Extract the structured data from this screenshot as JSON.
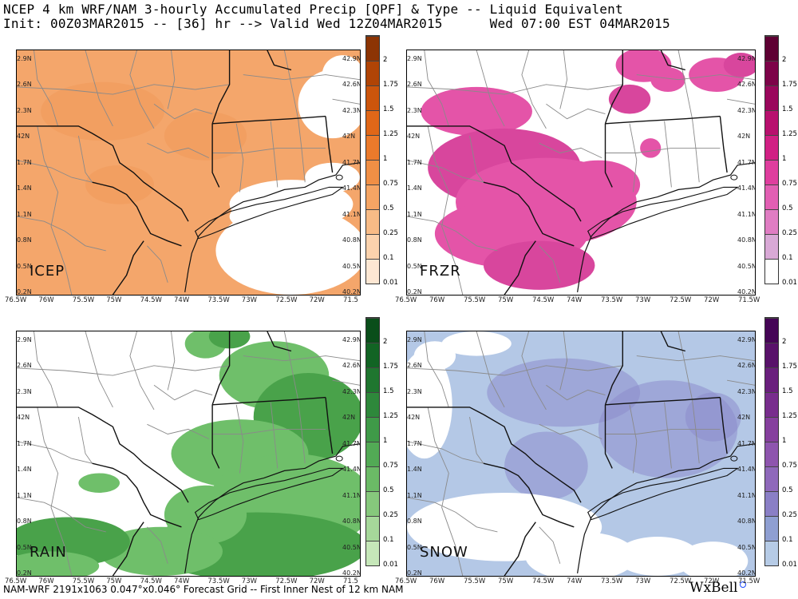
{
  "header": {
    "line1": "NCEP 4 km WRF/NAM 3-hourly Accumulated Precip [QPF] & Type -- Liquid Equivalent",
    "line2": "Init: 00Z03MAR2015 -- [36] hr --> Valid Wed 12Z04MAR2015      Wed 07:00 EST 04MAR2015"
  },
  "footer": {
    "text": "NAM-WRF 2191x1063 0.047°x0.046° Forecast Grid -- First Inner Nest of 12 km NAM",
    "logo": "WxBell"
  },
  "lat_labels": [
    "42.9N",
    "42.6N",
    "42.3N",
    "42N",
    "41.7N",
    "41.4N",
    "41.1N",
    "40.8N",
    "40.5N",
    "40.2N"
  ],
  "lat_labels_left": [
    "2.9N",
    "2.6N",
    "2.3N",
    "42N",
    "1.7N",
    "1.4N",
    "1.1N",
    "0.8N",
    "0.5N",
    "0.2N"
  ],
  "lon_labels": [
    "76.5W",
    "76W",
    "75.5W",
    "75W",
    "74.5W",
    "74W",
    "73.5W",
    "73W",
    "72.5W",
    "72W",
    "71.5"
  ],
  "lon_labels_right": [
    "76.5W",
    "76W",
    "75.5W",
    "75W",
    "74.5W",
    "74W",
    "73.5W",
    "73W",
    "72.5W",
    "72W",
    "71.5W"
  ],
  "panels": {
    "icep": {
      "tag": "ICEP",
      "fill": "#f4a66b",
      "shade": "#f0995a"
    },
    "frzr": {
      "tag": "FRZR",
      "fill": "#e454a8",
      "shade": "#d8469d"
    },
    "rain": {
      "tag": "RAIN",
      "fill": "#6fbf6a",
      "shade": "#49a24a"
    },
    "snow": {
      "tag": "SNOW",
      "fill": "#b4c8e6",
      "shade": "#8c8ccc"
    }
  },
  "colorbars": {
    "icep": {
      "labels": [
        "2",
        "1.75",
        "1.5",
        "1.25",
        "1",
        "0.75",
        "0.5",
        "0.25",
        "0.1",
        "0.01"
      ],
      "colors": [
        "#fde7d3",
        "#fbd2ad",
        "#f8bb86",
        "#f5a564",
        "#f08f45",
        "#eb7a2b",
        "#e06718",
        "#cc550c",
        "#b04406",
        "#8c3404"
      ]
    },
    "frzr": {
      "labels": [
        "2",
        "1.75",
        "1.5",
        "1.25",
        "1",
        "0.75",
        "0.5",
        "0.25",
        "0.1",
        "0.01"
      ],
      "colors": [
        "#ffffff",
        "#d9a9d6",
        "#e07dc3",
        "#e25fb3",
        "#df3e9e",
        "#d12084",
        "#b8106e",
        "#9a075c",
        "#7d0349",
        "#5e0033"
      ]
    },
    "rain": {
      "labels": [
        "2",
        "1.75",
        "1.5",
        "1.25",
        "1",
        "0.75",
        "0.5",
        "0.25",
        "0.1",
        "0.01"
      ],
      "colors": [
        "#c6e7b9",
        "#a6d89a",
        "#86c87c",
        "#6bba66",
        "#52aa55",
        "#3f9a48",
        "#2e883b",
        "#1f762f",
        "#126424",
        "#0a4e1a"
      ]
    },
    "snow": {
      "labels": [
        "2",
        "1.75",
        "1.5",
        "1.25",
        "1",
        "0.75",
        "0.5",
        "0.25",
        "0.1",
        "0.01"
      ],
      "colors": [
        "#b6cbe6",
        "#8f9fd2",
        "#8a7fc6",
        "#8f69bb",
        "#8e55ae",
        "#86409e",
        "#782d8d",
        "#6a1f7d",
        "#59126a",
        "#450556"
      ]
    }
  }
}
